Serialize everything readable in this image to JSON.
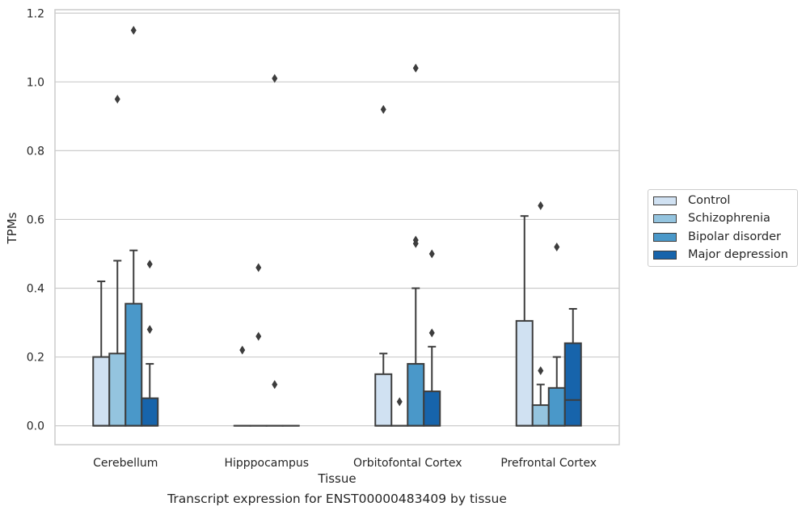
{
  "chart_data": {
    "type": "box",
    "title": "",
    "caption": "Transcript expression for ENST00000483409 by tissue",
    "xlabel": "Tissue",
    "ylabel": "TPMs",
    "ylim": [
      -0.055,
      1.21
    ],
    "yticks": [
      0.0,
      0.2,
      0.4,
      0.6,
      0.8,
      1.0,
      1.2
    ],
    "ytick_labels": [
      "0.0",
      "0.2",
      "0.4",
      "0.6",
      "0.8",
      "1.0",
      "1.2"
    ],
    "grid": "horizontal",
    "legend_position": "right",
    "categories": [
      "Cerebellum",
      "Hipppocampus",
      "Orbitofontal Cortex",
      "Prefrontal Cortex"
    ],
    "series": [
      {
        "name": "Control",
        "color": "#d0e1f2",
        "boxes": [
          {
            "q1": 0,
            "median": 0,
            "q3": 0.2,
            "whisker_low": 0,
            "whisker_high": 0.42,
            "outliers": []
          },
          {
            "q1": 0,
            "median": 0,
            "q3": 0,
            "whisker_low": 0,
            "whisker_high": 0,
            "outliers": [
              0.22
            ]
          },
          {
            "q1": 0,
            "median": 0,
            "q3": 0.15,
            "whisker_low": 0,
            "whisker_high": 0.21,
            "outliers": [
              0.92
            ]
          },
          {
            "q1": 0,
            "median": 0,
            "q3": 0.305,
            "whisker_low": 0,
            "whisker_high": 0.61,
            "outliers": []
          }
        ]
      },
      {
        "name": "Schizophrenia",
        "color": "#94c4df",
        "boxes": [
          {
            "q1": 0,
            "median": 0,
            "q3": 0.21,
            "whisker_low": 0,
            "whisker_high": 0.48,
            "outliers": [
              0.95
            ]
          },
          {
            "q1": 0,
            "median": 0,
            "q3": 0,
            "whisker_low": 0,
            "whisker_high": 0,
            "outliers": [
              0.46,
              0.26
            ]
          },
          {
            "q1": 0,
            "median": 0,
            "q3": 0,
            "whisker_low": 0,
            "whisker_high": 0,
            "outliers": [
              0.07
            ]
          },
          {
            "q1": 0,
            "median": 0,
            "q3": 0.06,
            "whisker_low": 0,
            "whisker_high": 0.12,
            "outliers": [
              0.16,
              0.64
            ]
          }
        ]
      },
      {
        "name": "Bipolar disorder",
        "color": "#4a98c9",
        "boxes": [
          {
            "q1": 0,
            "median": 0,
            "q3": 0.355,
            "whisker_low": 0,
            "whisker_high": 0.51,
            "outliers": [
              1.15
            ]
          },
          {
            "q1": 0,
            "median": 0,
            "q3": 0,
            "whisker_low": 0,
            "whisker_high": 0,
            "outliers": [
              0.12,
              1.01
            ]
          },
          {
            "q1": 0,
            "median": 0,
            "q3": 0.18,
            "whisker_low": 0,
            "whisker_high": 0.4,
            "outliers": [
              1.04,
              0.53,
              0.54
            ]
          },
          {
            "q1": 0,
            "median": 0,
            "q3": 0.11,
            "whisker_low": 0,
            "whisker_high": 0.2,
            "outliers": [
              0.52
            ]
          }
        ]
      },
      {
        "name": "Major depression",
        "color": "#1764ab",
        "boxes": [
          {
            "q1": 0,
            "median": 0,
            "q3": 0.08,
            "whisker_low": 0,
            "whisker_high": 0.18,
            "outliers": [
              0.28,
              0.47
            ]
          },
          {
            "q1": 0,
            "median": 0,
            "q3": 0,
            "whisker_low": 0,
            "whisker_high": 0,
            "outliers": []
          },
          {
            "q1": 0,
            "median": 0,
            "q3": 0.1,
            "whisker_low": 0,
            "whisker_high": 0.23,
            "outliers": [
              0.27,
              0.5
            ]
          },
          {
            "q1": 0,
            "median": 0.075,
            "q3": 0.24,
            "whisker_low": 0,
            "whisker_high": 0.34,
            "outliers": []
          }
        ]
      }
    ]
  }
}
